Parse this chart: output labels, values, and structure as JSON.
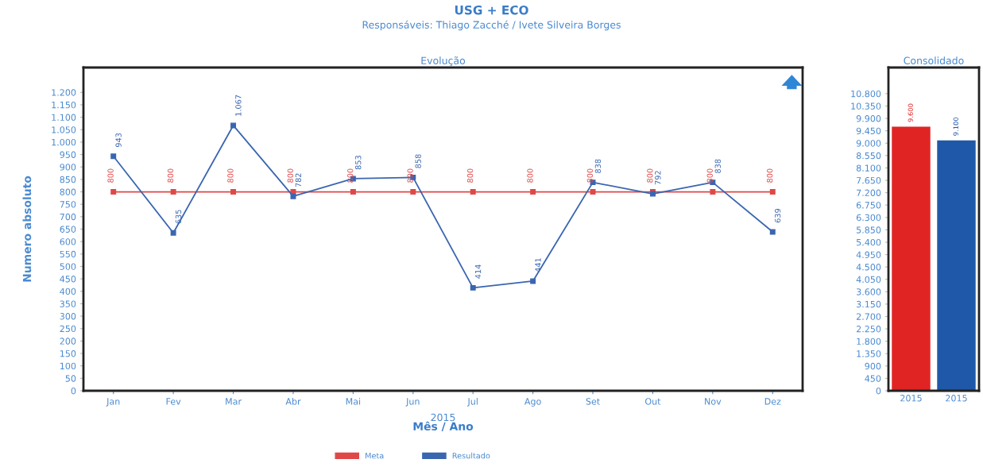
{
  "chart_data": [
    {
      "type": "line",
      "title": "USG + ECO",
      "subtitle": "Responsáveis: Thiago Zacché / Ivete Silveira Borges",
      "ylabel": "Numero absoluto",
      "xlabel": "Mês / Ano",
      "annotations": [
        "Evolução",
        "2015"
      ],
      "categories": [
        "Jan",
        "Fev",
        "Mar",
        "Abr",
        "Mai",
        "Jun",
        "Jul",
        "Ago",
        "Set",
        "Out",
        "Nov",
        "Dez"
      ],
      "series": [
        {
          "name": "Meta",
          "color": "#e04848",
          "values": [
            800,
            800,
            800,
            800,
            800,
            800,
            800,
            800,
            800,
            800,
            800,
            800
          ],
          "value_labels": [
            "800",
            "800",
            "800",
            "800",
            "800",
            "800",
            "800",
            "800",
            "800",
            "800",
            "800",
            "800"
          ]
        },
        {
          "name": "Resultado",
          "color": "#3a66b0",
          "values": [
            943,
            635,
            1067,
            782,
            853,
            858,
            414,
            441,
            838,
            792,
            838,
            639
          ],
          "value_labels": [
            "943",
            "635",
            "1.067",
            "782",
            "853",
            "858",
            "414",
            "441",
            "838",
            "792",
            "838",
            "639"
          ]
        }
      ],
      "ylim": [
        0,
        1300
      ],
      "yticks": [
        0,
        50,
        100,
        150,
        200,
        250,
        300,
        350,
        400,
        450,
        500,
        550,
        600,
        650,
        700,
        750,
        800,
        850,
        900,
        950,
        {
          "value": 1000,
          "label": "1.000"
        },
        {
          "value": 1050,
          "label": "1.050"
        },
        {
          "value": 1100,
          "label": "1.100"
        },
        {
          "value": 1150,
          "label": "1.150"
        },
        {
          "value": 1200,
          "label": "1.200"
        }
      ],
      "marker": "square",
      "legend": "bottom"
    },
    {
      "type": "bar",
      "title": "Consolidado",
      "categories": [
        "2015",
        "2015"
      ],
      "values": [
        9600,
        9100
      ],
      "colors": [
        "#e02424",
        "#1f58a8"
      ],
      "value_labels": [
        "9.600",
        "9.100"
      ],
      "ylim": [
        0,
        11750
      ],
      "yticks": [
        0,
        450,
        900,
        {
          "value": 1350,
          "label": "1.350"
        },
        {
          "value": 1800,
          "label": "1.800"
        },
        {
          "value": 2250,
          "label": "2.250"
        },
        {
          "value": 2700,
          "label": "2.700"
        },
        {
          "value": 3150,
          "label": "3.150"
        },
        {
          "value": 3600,
          "label": "3.600"
        },
        {
          "value": 4050,
          "label": "4.050"
        },
        {
          "value": 4500,
          "label": "4.500"
        },
        {
          "value": 4950,
          "label": "4.950"
        },
        {
          "value": 5400,
          "label": "5.400"
        },
        {
          "value": 5850,
          "label": "5.850"
        },
        {
          "value": 6300,
          "label": "6.300"
        },
        {
          "value": 6750,
          "label": "6.750"
        },
        {
          "value": 7200,
          "label": "7.200"
        },
        {
          "value": 7650,
          "label": "7.650"
        },
        {
          "value": 8100,
          "label": "8.100"
        },
        {
          "value": 8550,
          "label": "8.550"
        },
        {
          "value": 9000,
          "label": "9.000"
        },
        {
          "value": 9450,
          "label": "9.450"
        },
        {
          "value": 9900,
          "label": "9.900"
        },
        {
          "value": 10350,
          "label": "10.350"
        },
        {
          "value": 10800,
          "label": "10.800"
        }
      ]
    }
  ]
}
